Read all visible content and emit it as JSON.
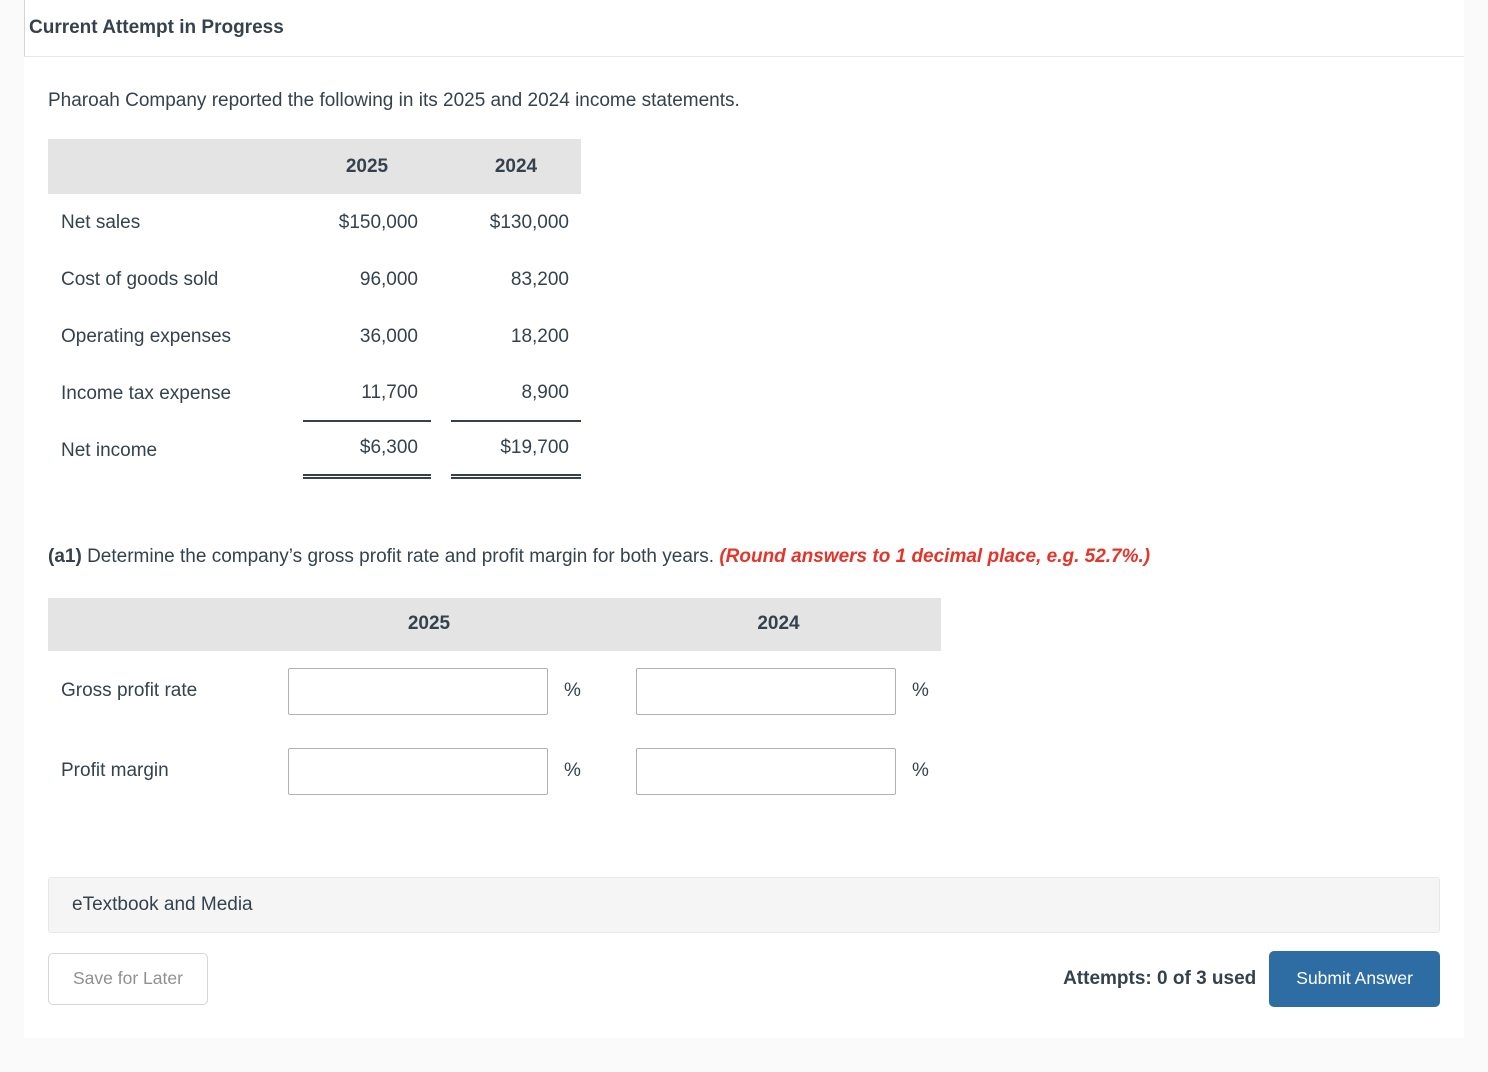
{
  "header": {
    "title": "Current Attempt in Progress"
  },
  "question": {
    "intro": "Pharoah Company reported the following in its 2025 and 2024 income statements.",
    "income_table": {
      "columns": [
        "2025",
        "2024"
      ],
      "rows": [
        {
          "label": "Net sales",
          "y2025": "$150,000",
          "y2024": "$130,000",
          "rule": "none"
        },
        {
          "label": "Cost of goods sold",
          "y2025": "96,000",
          "y2024": "83,200",
          "rule": "none"
        },
        {
          "label": "Operating expenses",
          "y2025": "36,000",
          "y2024": "18,200",
          "rule": "none"
        },
        {
          "label": "Income tax expense",
          "y2025": "11,700",
          "y2024": "8,900",
          "rule": "single"
        },
        {
          "label": "Net income",
          "y2025": "$6,300",
          "y2024": "$19,700",
          "rule": "double"
        }
      ]
    },
    "part_label": "(a1)",
    "part_text": "Determine the company’s gross profit rate and profit margin for both years.",
    "part_note": "(Round answers to 1 decimal place, e.g. 52.7%.)",
    "answer_table": {
      "columns": [
        "2025",
        "2024"
      ],
      "rows": [
        {
          "label": "Gross profit rate",
          "value_2025": "",
          "value_2024": "",
          "unit": "%"
        },
        {
          "label": "Profit margin",
          "value_2025": "",
          "value_2024": "",
          "unit": "%"
        }
      ]
    }
  },
  "etextbook_bar": {
    "label": "eTextbook and Media"
  },
  "footer": {
    "save_button": "Save for Later",
    "attempts_text": "Attempts: 0 of 3 used",
    "submit_button": "Submit Answer"
  },
  "colors": {
    "accent_blue": "#2d6da3",
    "warning_red": "#e4352b",
    "table_header_bg": "#e4e4e4",
    "text_dark": "#35424e",
    "page_bg": "#fafafa"
  }
}
